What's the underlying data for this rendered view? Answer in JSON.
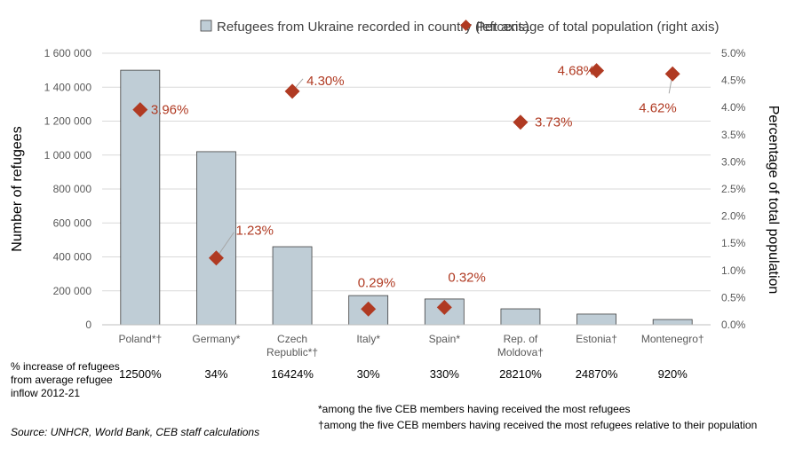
{
  "chart_data": {
    "type": "bar+scatter",
    "categories": [
      "Poland*†",
      "Germany*",
      "Czech Republic*†",
      "Italy*",
      "Spain*",
      "Rep. of Moldova†",
      "Estonia†",
      "Montenegro†"
    ],
    "category_lines": [
      [
        "Poland*†"
      ],
      [
        "Germany*"
      ],
      [
        "Czech",
        "Republic*†"
      ],
      [
        "Italy*"
      ],
      [
        "Spain*"
      ],
      [
        "Rep. of",
        "Moldova†"
      ],
      [
        "Estonia†"
      ],
      [
        "Montenegro†"
      ]
    ],
    "series": [
      {
        "name": "Refugees from Ukraine recorded in country (left axis)",
        "type": "bar",
        "axis": "left",
        "color": "#bfcdd6",
        "values": [
          1500000,
          1020000,
          460000,
          172000,
          152000,
          94000,
          63000,
          31000
        ]
      },
      {
        "name": "Percentage of total population (right axis)",
        "type": "scatter",
        "axis": "right",
        "color": "#b03a22",
        "values": [
          3.96,
          1.23,
          4.3,
          0.29,
          0.32,
          3.73,
          4.68,
          4.62
        ],
        "labels": [
          "3.96%",
          "1.23%",
          "4.30%",
          "0.29%",
          "0.32%",
          "3.73%",
          "4.68%",
          "4.62%"
        ]
      }
    ],
    "ylabel": "Number of refugees",
    "ylabel_right": "Percentage of total population",
    "ylim": [
      0,
      1600000
    ],
    "ylim_right": [
      0,
      5
    ],
    "yticks": [
      "0",
      "200 000",
      "400 000",
      "600 000",
      "800 000",
      "1 000 000",
      "1 200 000",
      "1 400 000",
      "1 600 000"
    ],
    "yticks_right": [
      "0.0%",
      "0.5%",
      "1.0%",
      "1.5%",
      "2.0%",
      "2.5%",
      "3.0%",
      "3.5%",
      "4.0%",
      "4.5%",
      "5.0%"
    ],
    "grid": true,
    "legend": "top"
  },
  "increase_row": {
    "label_lines": [
      "% increase of refugees",
      "from average refugee",
      "inflow 2012-21"
    ],
    "values": [
      "12500%",
      "34%",
      "16424%",
      "30%",
      "330%",
      "28210%",
      "24870%",
      "920%"
    ]
  },
  "notes": {
    "star": "*among the five CEB members having received the most refugees",
    "dagger": "†among the five CEB members having received the most refugees relative to their population",
    "source": "Source: UNHCR, World Bank, CEB staff  calculations"
  }
}
